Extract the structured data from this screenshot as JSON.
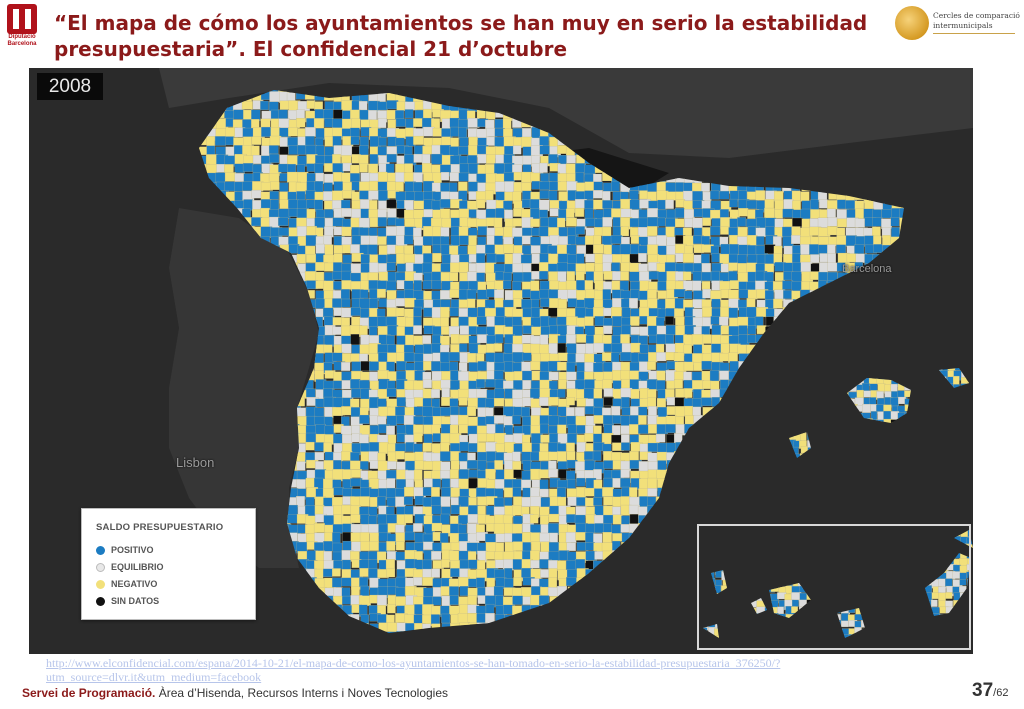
{
  "header": {
    "title_line1": "“El mapa de cómo los ayuntamientos se han muy en serio la estabilidad",
    "title_line2": "presupuestaria”. El confidencial 21 d’octubre",
    "logo_left": {
      "line1": "Diputació",
      "line2": "Barcelona"
    },
    "logo_right": {
      "line1": "Cercles de comparació",
      "line2": "intermunicipals"
    }
  },
  "map": {
    "year": "2008",
    "places": {
      "lisbon": "Lisbon",
      "barcelona": "Barcelona"
    },
    "colors": {
      "positivo": "#1c7cc2",
      "equilibrio": "#dcdcdc",
      "negativo": "#f2e07a",
      "sin_datos": "#111111",
      "sea": "#2a2a2a",
      "land": "#3a3a3a"
    }
  },
  "legend": {
    "title": "SALDO PRESUPUESTARIO",
    "items": [
      {
        "label": "POSITIVO",
        "color": "#1c7cc2"
      },
      {
        "label": "EQUILIBRIO",
        "color": "#e8e8e8"
      },
      {
        "label": "NEGATIVO",
        "color": "#f2e07a"
      },
      {
        "label": "SIN DATOS",
        "color": "#111111"
      }
    ]
  },
  "source_url": "http://www.elconfidencial.com/espana/2014-10-21/el-mapa-de-como-los-ayuntamientos-se-han-tomado-en-serio-la-estabilidad-presupuestaria_376250/?utm_source=dlvr.it&utm_medium=facebook",
  "footer": {
    "bold": "Servei de Programació.",
    "rest": " Àrea d’Hisenda, Recursos Interns i Noves Tecnologies",
    "page_current": "37",
    "page_total": "/62"
  }
}
